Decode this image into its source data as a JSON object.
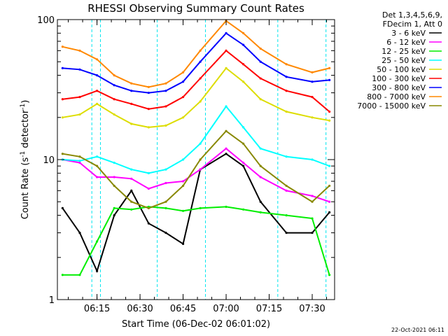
{
  "chart_data": {
    "type": "line",
    "title": "RHESSI Observing Summary Count Rates",
    "xlabel": "Start Time (06-Dec-02 06:01:02)",
    "ylabel_main": "Count Rate (s",
    "ylabel_sup": "-1",
    "ylabel_tail": " detector",
    "ylabel_close": ")",
    "yscale": "log",
    "ylim": [
      1,
      100
    ],
    "xlim": [
      6.02,
      7.63
    ],
    "x_ticks": [
      {
        "label": "06:15",
        "x": 6.25
      },
      {
        "label": "06:30",
        "x": 6.5
      },
      {
        "label": "06:45",
        "x": 6.75
      },
      {
        "label": "07:00",
        "x": 7.0
      },
      {
        "label": "07:15",
        "x": 7.25
      },
      {
        "label": "07:30",
        "x": 7.5
      }
    ],
    "y_ticks": [
      {
        "label": "1",
        "y": 1
      },
      {
        "label": "10",
        "y": 10
      },
      {
        "label": "100",
        "y": 100
      }
    ],
    "header_lines": [
      "Det 1,3,4,5,6,9,",
      "FDecim 1, Att 0"
    ],
    "footer_stamp": "22-Oct-2021 06:11",
    "legend_position": "right",
    "vertical_markers": [
      6.22,
      6.27,
      6.6,
      6.88,
      7.3,
      7.58
    ],
    "series": [
      {
        "name": "3 - 6 keV",
        "color": "#000000",
        "values": [
          4.5,
          3.0,
          1.6,
          4.0,
          6.0,
          3.5,
          3.0,
          2.5,
          8.5,
          11.0,
          9.0,
          5.0,
          3.0,
          3.0,
          4.2
        ]
      },
      {
        "name": "6 - 12 keV",
        "color": "#ff00ff",
        "values": [
          10.0,
          9.5,
          7.5,
          7.5,
          7.3,
          6.2,
          6.8,
          7.0,
          8.5,
          12.0,
          9.5,
          7.5,
          6.0,
          5.5,
          5.0
        ]
      },
      {
        "name": "12 - 25 keV",
        "color": "#00ee00",
        "values": [
          1.5,
          1.5,
          2.6,
          4.5,
          4.4,
          4.6,
          4.5,
          4.3,
          4.5,
          4.6,
          4.4,
          4.2,
          4.0,
          3.8,
          1.5
        ]
      },
      {
        "name": "25 - 50 keV",
        "color": "#00ffff",
        "values": [
          10.0,
          9.8,
          10.5,
          9.5,
          8.5,
          8.0,
          8.5,
          10.0,
          13.0,
          24.0,
          17.0,
          12.0,
          10.5,
          10.0,
          9.0
        ]
      },
      {
        "name": "50 - 100 keV",
        "color": "#dddd00",
        "values": [
          20.0,
          21.0,
          25.0,
          21.0,
          18.0,
          17.0,
          17.5,
          20.0,
          26.0,
          45.0,
          36.0,
          27.0,
          22.0,
          20.0,
          19.0
        ]
      },
      {
        "name": "100 - 300 keV",
        "color": "#ff0000",
        "values": [
          27.0,
          28.0,
          31.0,
          27.0,
          25.0,
          23.0,
          24.0,
          28.0,
          38.0,
          60.0,
          48.0,
          38.0,
          31.0,
          28.0,
          22.0
        ]
      },
      {
        "name": "300 - 800 keV",
        "color": "#0000ff",
        "values": [
          45.0,
          44.0,
          40.0,
          34.0,
          31.0,
          30.0,
          31.0,
          36.0,
          50.0,
          80.0,
          66.0,
          50.0,
          39.0,
          36.0,
          37.0
        ]
      },
      {
        "name": "800 - 7000 keV",
        "color": "#ff8800",
        "values": [
          64.0,
          60.0,
          52.0,
          40.0,
          35.0,
          33.0,
          35.0,
          42.0,
          60.0,
          98.0,
          80.0,
          62.0,
          48.0,
          42.0,
          45.0
        ]
      },
      {
        "name": "7000 - 15000 keV",
        "color": "#888800",
        "values": [
          11.0,
          10.5,
          9.0,
          6.5,
          5.0,
          4.5,
          5.0,
          6.5,
          10.0,
          16.0,
          13.0,
          9.0,
          6.5,
          5.0,
          6.5
        ]
      }
    ],
    "x": [
      6.05,
      6.15,
      6.25,
      6.35,
      6.45,
      6.55,
      6.65,
      6.75,
      6.85,
      7.0,
      7.1,
      7.2,
      7.35,
      7.5,
      7.6
    ]
  }
}
